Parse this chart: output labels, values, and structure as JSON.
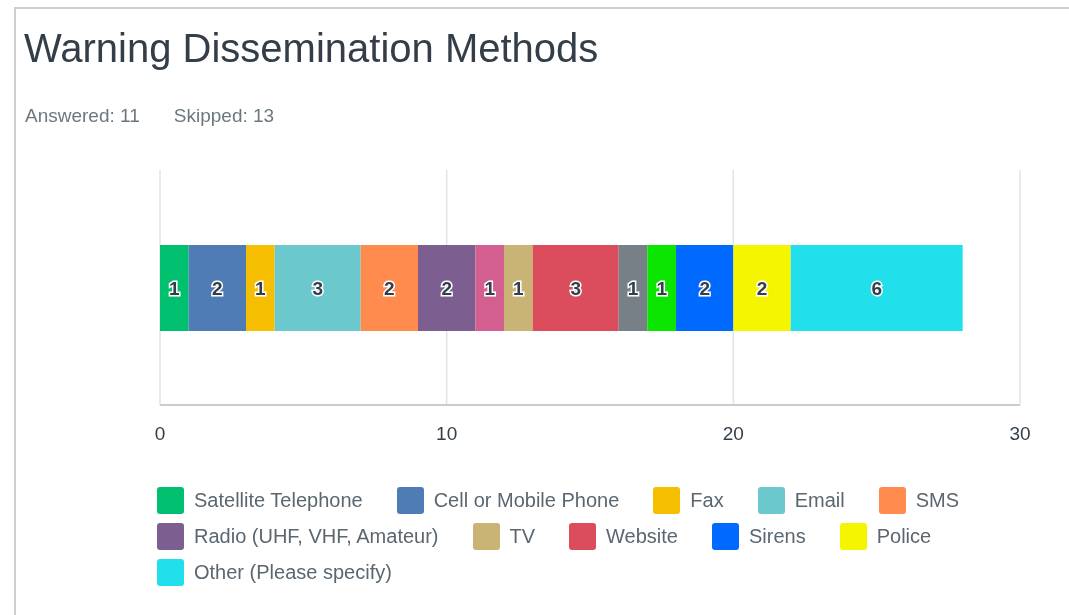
{
  "chart_data": {
    "type": "bar",
    "orientation": "horizontal",
    "stacked": true,
    "title": "Warning Dissemination Methods",
    "annotations": [
      "Answered: 11",
      "Skipped: 13"
    ],
    "categories": [
      null
    ],
    "series": [
      {
        "name": "Satellite Telephone",
        "color": "#00bf6f",
        "values": [
          1
        ]
      },
      {
        "name": "Cell or Mobile Phone",
        "color": "#507cb6",
        "values": [
          2
        ]
      },
      {
        "name": "Fax",
        "color": "#f5be00",
        "values": [
          1
        ]
      },
      {
        "name": "Email",
        "color": "#6bc8cd",
        "values": [
          3
        ]
      },
      {
        "name": "SMS",
        "color": "#ff8b4f",
        "values": [
          2
        ]
      },
      {
        "name": "Radio (UHF, VHF, Amateur)",
        "color": "#7d5e90",
        "values": [
          2
        ]
      },
      {
        "color": "#d25f90",
        "values": [
          1
        ]
      },
      {
        "name": "TV",
        "color": "#c9b375",
        "values": [
          1
        ]
      },
      {
        "name": "Website",
        "color": "#db4d5c",
        "values": [
          3
        ]
      },
      {
        "color": "#768086",
        "values": [
          1
        ]
      },
      {
        "color": "#0ce500",
        "values": [
          1
        ]
      },
      {
        "name": "Sirens",
        "color": "#0069ff",
        "values": [
          2
        ]
      },
      {
        "name": "Police",
        "color": "#f5f500",
        "values": [
          2
        ]
      },
      {
        "name": "Other (Please specify)",
        "color": "#21e0ec",
        "values": [
          6
        ]
      }
    ],
    "xlim": [
      0,
      30
    ],
    "xticks": [
      0,
      10,
      20,
      30
    ],
    "grid": "x",
    "legend": "bottom",
    "data_labels": true
  }
}
